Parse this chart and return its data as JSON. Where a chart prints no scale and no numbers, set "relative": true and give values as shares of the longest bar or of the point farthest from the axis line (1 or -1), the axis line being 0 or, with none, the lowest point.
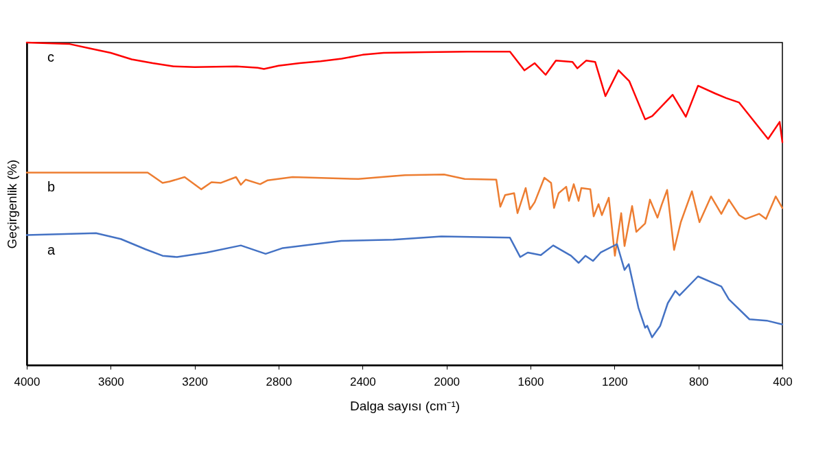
{
  "chart_data": {
    "type": "line",
    "relative": true,
    "xlabel": "Dalga sayısı (cm⁻¹)",
    "ylabel": "Geçirgenlik (%)",
    "xlim": [
      4000,
      400
    ],
    "xticks": [
      4000,
      3600,
      3200,
      2800,
      2400,
      2000,
      1600,
      1200,
      800,
      400
    ],
    "grid": false,
    "legend": false,
    "series": [
      {
        "name": "c",
        "color": "#ff0000",
        "x": [
          4000,
          3800,
          3700,
          3600,
          3500,
          3400,
          3300,
          3200,
          3000,
          2900,
          2870,
          2800,
          2700,
          2600,
          2500,
          2400,
          2300,
          2100,
          1900,
          1740,
          1698,
          1629,
          1580,
          1528,
          1479,
          1400,
          1377,
          1335,
          1292,
          1243,
          1181,
          1129,
          1054,
          1020,
          923,
          860,
          802,
          720,
          668,
          606,
          468,
          413,
          400
        ],
        "values": [
          1.0,
          0.996,
          0.982,
          0.968,
          0.948,
          0.936,
          0.926,
          0.924,
          0.926,
          0.922,
          0.918,
          0.928,
          0.936,
          0.942,
          0.95,
          0.962,
          0.968,
          0.97,
          0.972,
          0.972,
          0.972,
          0.914,
          0.936,
          0.9,
          0.944,
          0.94,
          0.92,
          0.944,
          0.94,
          0.834,
          0.914,
          0.88,
          0.762,
          0.772,
          0.838,
          0.77,
          0.866,
          0.842,
          0.828,
          0.814,
          0.701,
          0.754,
          0.691
        ]
      },
      {
        "name": "b",
        "color": "#ed7d31",
        "x": [
          4000,
          3424,
          3353,
          3320,
          3248,
          3169,
          3120,
          3075,
          3003,
          2980,
          2957,
          2888,
          2852,
          2734,
          2420,
          2198,
          2012,
          1914,
          1763,
          1744,
          1721,
          1678,
          1662,
          1623,
          1603,
          1580,
          1534,
          1502,
          1488,
          1466,
          1430,
          1417,
          1394,
          1371,
          1358,
          1315,
          1299,
          1276,
          1260,
          1227,
          1198,
          1168,
          1152,
          1116,
          1096,
          1054,
          1031,
          995,
          975,
          949,
          916,
          884,
          831,
          795,
          740,
          691,
          655,
          606,
          576,
          511,
          478,
          432,
          400
        ],
        "values": [
          0.597,
          0.597,
          0.565,
          0.569,
          0.583,
          0.545,
          0.567,
          0.565,
          0.583,
          0.559,
          0.575,
          0.561,
          0.573,
          0.583,
          0.577,
          0.589,
          0.591,
          0.577,
          0.575,
          0.491,
          0.527,
          0.533,
          0.471,
          0.549,
          0.483,
          0.505,
          0.581,
          0.565,
          0.487,
          0.533,
          0.553,
          0.509,
          0.561,
          0.509,
          0.549,
          0.545,
          0.461,
          0.499,
          0.465,
          0.519,
          0.339,
          0.471,
          0.369,
          0.493,
          0.413,
          0.439,
          0.513,
          0.457,
          0.497,
          0.543,
          0.357,
          0.443,
          0.539,
          0.443,
          0.523,
          0.469,
          0.513,
          0.465,
          0.453,
          0.469,
          0.453,
          0.523,
          0.487
        ]
      },
      {
        "name": "a",
        "color": "#4472c4",
        "x": [
          4000,
          3670,
          3552,
          3434,
          3353,
          3284,
          3143,
          2980,
          2862,
          2780,
          2502,
          2254,
          2025,
          1698,
          1649,
          1613,
          1551,
          1492,
          1407,
          1371,
          1338,
          1302,
          1266,
          1188,
          1152,
          1132,
          1086,
          1054,
          1044,
          1021,
          982,
          946,
          910,
          890,
          802,
          691,
          655,
          557,
          475,
          400
        ],
        "values": [
          0.403,
          0.409,
          0.391,
          0.359,
          0.339,
          0.335,
          0.349,
          0.371,
          0.345,
          0.363,
          0.385,
          0.389,
          0.399,
          0.395,
          0.335,
          0.349,
          0.341,
          0.371,
          0.339,
          0.317,
          0.339,
          0.323,
          0.349,
          0.375,
          0.295,
          0.313,
          0.178,
          0.116,
          0.122,
          0.086,
          0.122,
          0.192,
          0.23,
          0.216,
          0.275,
          0.244,
          0.204,
          0.142,
          0.138,
          0.126
        ]
      }
    ]
  }
}
